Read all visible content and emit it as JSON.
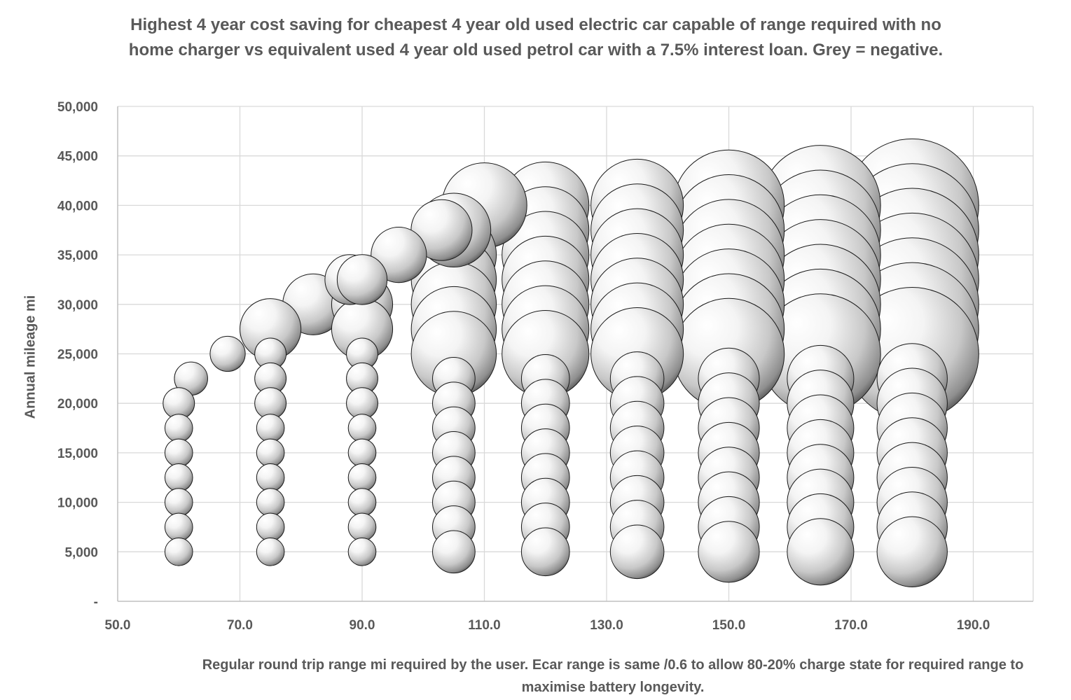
{
  "chart_data": {
    "type": "scatter",
    "subtype": "bubble",
    "title": "Highest 4 year cost saving for cheapest 4 year old used electric car capable of range required  with no home charger vs equivalent used 4 year old used petrol car with a 7.5% interest loan. Grey = negative.",
    "xlabel": "Regular round trip range mi required by the user.  Ecar range is same /0.6 to allow 80-20% charge state for required range to maximise battery longevity.",
    "ylabel": "Annual mileage mi",
    "xlim": [
      50,
      200
    ],
    "ylim": [
      0,
      50000
    ],
    "x_ticks": [
      50,
      70,
      90,
      110,
      130,
      150,
      170,
      190
    ],
    "x_tick_labels": [
      "50.0",
      "70.0",
      "90.0",
      "110.0",
      "130.0",
      "150.0",
      "170.0",
      "190.0"
    ],
    "y_ticks": [
      0,
      5000,
      10000,
      15000,
      20000,
      25000,
      30000,
      35000,
      40000,
      45000,
      50000
    ],
    "y_tick_labels": [
      "-",
      "5,000",
      "10,000",
      "15,000",
      "20,000",
      "25,000",
      "30,000",
      "35,000",
      "40,000",
      "45,000",
      "50,000"
    ],
    "grid": true,
    "bubble_color": "#d9d9d9",
    "points": [
      {
        "x": 60,
        "y": 5000,
        "size": 1.5
      },
      {
        "x": 60,
        "y": 7500,
        "size": 1.5
      },
      {
        "x": 60,
        "y": 10000,
        "size": 1.5
      },
      {
        "x": 60,
        "y": 12500,
        "size": 1.5
      },
      {
        "x": 60,
        "y": 15000,
        "size": 1.5
      },
      {
        "x": 60,
        "y": 17500,
        "size": 1.5
      },
      {
        "x": 60,
        "y": 20000,
        "size": 1.7
      },
      {
        "x": 62,
        "y": 22500,
        "size": 1.8
      },
      {
        "x": 68,
        "y": 25000,
        "size": 1.9
      },
      {
        "x": 75,
        "y": 5000,
        "size": 1.5
      },
      {
        "x": 75,
        "y": 7500,
        "size": 1.5
      },
      {
        "x": 75,
        "y": 10000,
        "size": 1.5
      },
      {
        "x": 75,
        "y": 12500,
        "size": 1.5
      },
      {
        "x": 75,
        "y": 15000,
        "size": 1.5
      },
      {
        "x": 75,
        "y": 17500,
        "size": 1.5
      },
      {
        "x": 75,
        "y": 20000,
        "size": 1.7
      },
      {
        "x": 75,
        "y": 22500,
        "size": 1.7
      },
      {
        "x": 75,
        "y": 25000,
        "size": 1.7
      },
      {
        "x": 75,
        "y": 27500,
        "size": 3.3
      },
      {
        "x": 82,
        "y": 30000,
        "size": 3.3
      },
      {
        "x": 90,
        "y": 5000,
        "size": 1.5
      },
      {
        "x": 90,
        "y": 7500,
        "size": 1.5
      },
      {
        "x": 90,
        "y": 10000,
        "size": 1.5
      },
      {
        "x": 90,
        "y": 12500,
        "size": 1.5
      },
      {
        "x": 90,
        "y": 15000,
        "size": 1.5
      },
      {
        "x": 90,
        "y": 17500,
        "size": 1.5
      },
      {
        "x": 90,
        "y": 20000,
        "size": 1.7
      },
      {
        "x": 90,
        "y": 22500,
        "size": 1.7
      },
      {
        "x": 90,
        "y": 25000,
        "size": 1.7
      },
      {
        "x": 90,
        "y": 27500,
        "size": 3.3
      },
      {
        "x": 90,
        "y": 30000,
        "size": 3.3
      },
      {
        "x": 88,
        "y": 32500,
        "size": 2.7
      },
      {
        "x": 90,
        "y": 32500,
        "size": 2.7
      },
      {
        "x": 96,
        "y": 35000,
        "size": 3.0
      },
      {
        "x": 105,
        "y": 5000,
        "size": 2.3
      },
      {
        "x": 105,
        "y": 7500,
        "size": 2.3
      },
      {
        "x": 105,
        "y": 10000,
        "size": 2.3
      },
      {
        "x": 105,
        "y": 12500,
        "size": 2.3
      },
      {
        "x": 105,
        "y": 15000,
        "size": 2.3
      },
      {
        "x": 105,
        "y": 17500,
        "size": 2.3
      },
      {
        "x": 105,
        "y": 20000,
        "size": 2.3
      },
      {
        "x": 105,
        "y": 22500,
        "size": 2.3
      },
      {
        "x": 105,
        "y": 25000,
        "size": 4.6
      },
      {
        "x": 105,
        "y": 27500,
        "size": 4.6
      },
      {
        "x": 105,
        "y": 30000,
        "size": 4.6
      },
      {
        "x": 105,
        "y": 32500,
        "size": 4.6
      },
      {
        "x": 105,
        "y": 35000,
        "size": 4.6
      },
      {
        "x": 103,
        "y": 37500,
        "size": 3.3
      },
      {
        "x": 105,
        "y": 37500,
        "size": 4.0
      },
      {
        "x": 110,
        "y": 40000,
        "size": 4.6
      },
      {
        "x": 120,
        "y": 5000,
        "size": 2.6
      },
      {
        "x": 120,
        "y": 7500,
        "size": 2.6
      },
      {
        "x": 120,
        "y": 10000,
        "size": 2.6
      },
      {
        "x": 120,
        "y": 12500,
        "size": 2.6
      },
      {
        "x": 120,
        "y": 15000,
        "size": 2.6
      },
      {
        "x": 120,
        "y": 17500,
        "size": 2.6
      },
      {
        "x": 120,
        "y": 20000,
        "size": 2.6
      },
      {
        "x": 120,
        "y": 22500,
        "size": 2.6
      },
      {
        "x": 120,
        "y": 25000,
        "size": 4.7
      },
      {
        "x": 120,
        "y": 27500,
        "size": 4.7
      },
      {
        "x": 120,
        "y": 30000,
        "size": 4.7
      },
      {
        "x": 120,
        "y": 32500,
        "size": 4.7
      },
      {
        "x": 120,
        "y": 35000,
        "size": 4.7
      },
      {
        "x": 120,
        "y": 37500,
        "size": 4.7
      },
      {
        "x": 120,
        "y": 40000,
        "size": 4.7
      },
      {
        "x": 135,
        "y": 5000,
        "size": 2.9
      },
      {
        "x": 135,
        "y": 7500,
        "size": 2.9
      },
      {
        "x": 135,
        "y": 10000,
        "size": 2.9
      },
      {
        "x": 135,
        "y": 12500,
        "size": 2.9
      },
      {
        "x": 135,
        "y": 15000,
        "size": 2.9
      },
      {
        "x": 135,
        "y": 17500,
        "size": 2.9
      },
      {
        "x": 135,
        "y": 20000,
        "size": 2.9
      },
      {
        "x": 135,
        "y": 22500,
        "size": 2.9
      },
      {
        "x": 135,
        "y": 25000,
        "size": 5.0
      },
      {
        "x": 135,
        "y": 27500,
        "size": 5.0
      },
      {
        "x": 135,
        "y": 30000,
        "size": 5.0
      },
      {
        "x": 135,
        "y": 32500,
        "size": 5.0
      },
      {
        "x": 135,
        "y": 35000,
        "size": 5.0
      },
      {
        "x": 135,
        "y": 37500,
        "size": 5.0
      },
      {
        "x": 135,
        "y": 40000,
        "size": 5.0
      },
      {
        "x": 150,
        "y": 5000,
        "size": 3.3
      },
      {
        "x": 150,
        "y": 7500,
        "size": 3.3
      },
      {
        "x": 150,
        "y": 10000,
        "size": 3.3
      },
      {
        "x": 150,
        "y": 12500,
        "size": 3.3
      },
      {
        "x": 150,
        "y": 15000,
        "size": 3.3
      },
      {
        "x": 150,
        "y": 17500,
        "size": 3.3
      },
      {
        "x": 150,
        "y": 20000,
        "size": 3.3
      },
      {
        "x": 150,
        "y": 22500,
        "size": 3.3
      },
      {
        "x": 150,
        "y": 25000,
        "size": 6.0
      },
      {
        "x": 150,
        "y": 27500,
        "size": 6.0
      },
      {
        "x": 150,
        "y": 30000,
        "size": 6.0
      },
      {
        "x": 150,
        "y": 32500,
        "size": 6.0
      },
      {
        "x": 150,
        "y": 35000,
        "size": 6.0
      },
      {
        "x": 150,
        "y": 37500,
        "size": 6.0
      },
      {
        "x": 150,
        "y": 40000,
        "size": 6.0
      },
      {
        "x": 165,
        "y": 5000,
        "size": 3.6
      },
      {
        "x": 165,
        "y": 7500,
        "size": 3.6
      },
      {
        "x": 165,
        "y": 10000,
        "size": 3.6
      },
      {
        "x": 165,
        "y": 12500,
        "size": 3.6
      },
      {
        "x": 165,
        "y": 15000,
        "size": 3.6
      },
      {
        "x": 165,
        "y": 17500,
        "size": 3.6
      },
      {
        "x": 165,
        "y": 20000,
        "size": 3.6
      },
      {
        "x": 165,
        "y": 22500,
        "size": 3.6
      },
      {
        "x": 165,
        "y": 25000,
        "size": 6.5
      },
      {
        "x": 165,
        "y": 27500,
        "size": 6.5
      },
      {
        "x": 165,
        "y": 30000,
        "size": 6.5
      },
      {
        "x": 165,
        "y": 32500,
        "size": 6.5
      },
      {
        "x": 165,
        "y": 35000,
        "size": 6.5
      },
      {
        "x": 165,
        "y": 37500,
        "size": 6.5
      },
      {
        "x": 165,
        "y": 40000,
        "size": 6.5
      },
      {
        "x": 180,
        "y": 5000,
        "size": 3.8
      },
      {
        "x": 180,
        "y": 7500,
        "size": 3.8
      },
      {
        "x": 180,
        "y": 10000,
        "size": 3.8
      },
      {
        "x": 180,
        "y": 12500,
        "size": 3.8
      },
      {
        "x": 180,
        "y": 15000,
        "size": 3.8
      },
      {
        "x": 180,
        "y": 17500,
        "size": 3.8
      },
      {
        "x": 180,
        "y": 20000,
        "size": 3.8
      },
      {
        "x": 180,
        "y": 22500,
        "size": 3.8
      },
      {
        "x": 180,
        "y": 25000,
        "size": 7.2
      },
      {
        "x": 180,
        "y": 27500,
        "size": 7.2
      },
      {
        "x": 180,
        "y": 30000,
        "size": 7.2
      },
      {
        "x": 180,
        "y": 32500,
        "size": 7.2
      },
      {
        "x": 180,
        "y": 35000,
        "size": 7.2
      },
      {
        "x": 180,
        "y": 37500,
        "size": 7.2
      },
      {
        "x": 180,
        "y": 40000,
        "size": 7.2
      }
    ]
  }
}
